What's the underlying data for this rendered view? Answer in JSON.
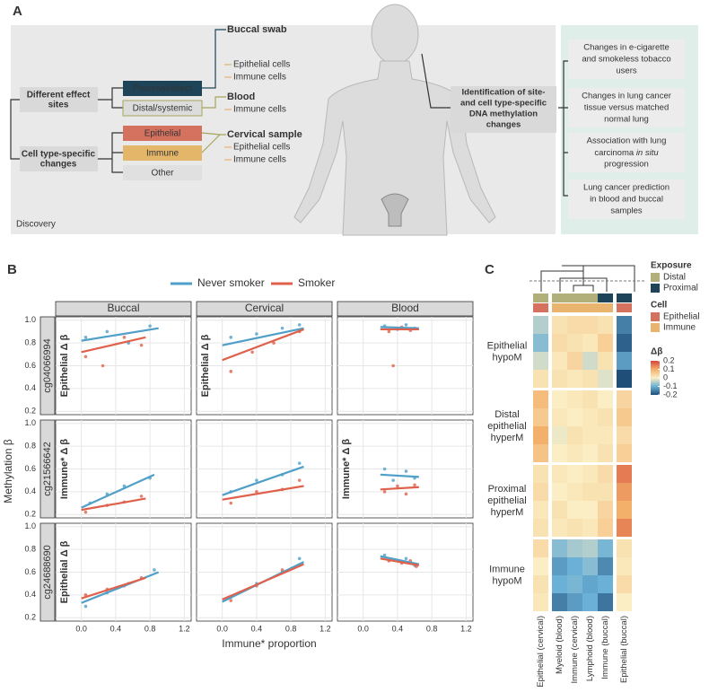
{
  "panel_a": {
    "label": "A",
    "footer": "Discovery",
    "left_boxes": [
      [
        "Different effect",
        "sites"
      ],
      [
        "Cell type-specific",
        "changes"
      ]
    ],
    "mid_boxes": [
      "Proximal/direct",
      "Distal/systemic",
      "Epithelial",
      "Immune",
      "Other"
    ],
    "samples": [
      {
        "name": "Buccal swab",
        "cells": [
          "Epithelial cells",
          "Immune cells"
        ]
      },
      {
        "name": "Blood",
        "cells": [
          "Immune cells"
        ]
      },
      {
        "name": "Cervical sample",
        "cells": [
          "Epithelial cells",
          "Immune cells"
        ]
      }
    ],
    "center_box": [
      "Identification of site-",
      "and cell type-specific",
      "DNA methylation",
      "changes"
    ],
    "right_boxes": [
      [
        "Changes in e-cigarette",
        "and smokeless tobacco",
        "users"
      ],
      [
        "Changes in lung cancer",
        "tissue versus matched",
        "normal lung"
      ],
      [
        "Association with lung",
        [
          "carcinoma ",
          "in situ"
        ],
        "progression"
      ],
      [
        "Lung cancer prediction",
        "in blood and buccal",
        "samples"
      ]
    ]
  },
  "chart_data": [
    {
      "type": "scatter",
      "panel_label": "B",
      "xlabel": "Immune* proportion",
      "ylabel": "Methylation β",
      "series": [
        {
          "name": "Never smoker",
          "color": "#4f9fc8"
        },
        {
          "name": "Smoker",
          "color": "#e0614b"
        }
      ],
      "columns": [
        "Buccal",
        "Cervical",
        "Blood"
      ],
      "rows": [
        "cg04066994",
        "cg21566642",
        "cg24688690"
      ],
      "xlim": [
        -0.3,
        1.28
      ],
      "xticks": [
        {
          "value": 0,
          "label": "0.0"
        },
        0.4,
        0.8,
        1.2
      ],
      "ylim": [
        0.17,
        1.03
      ],
      "yticks": [
        0.2,
        0.4,
        0.6,
        0.8,
        {
          "value": 1,
          "label": "1.0"
        }
      ],
      "grid": true,
      "panels": [
        {
          "fits": [
            [
              0,
              0.82,
              0.9,
              0.93
            ],
            [
              0,
              0.72,
              0.75,
              0.85
            ]
          ],
          "points": [
            [
              [
                0.05,
                0.85
              ],
              [
                0.3,
                0.9
              ],
              [
                0.55,
                0.8
              ],
              [
                0.8,
                0.95
              ]
            ],
            [
              [
                0.05,
                0.68
              ],
              [
                0.25,
                0.6
              ],
              [
                0.5,
                0.85
              ],
              [
                0.7,
                0.78
              ]
            ]
          ]
        },
        {
          "fits": [
            [
              0,
              0.78,
              0.95,
              0.93
            ],
            [
              0,
              0.65,
              0.95,
              0.92
            ]
          ],
          "points": [
            [
              [
                0.1,
                0.85
              ],
              [
                0.4,
                0.88
              ],
              [
                0.7,
                0.93
              ],
              [
                0.9,
                0.96
              ]
            ],
            [
              [
                0.1,
                0.55
              ],
              [
                0.35,
                0.72
              ],
              [
                0.6,
                0.8
              ],
              [
                0.9,
                0.9
              ]
            ]
          ]
        },
        {
          "fits": [
            [
              0.2,
              0.94,
              0.65,
              0.93
            ],
            [
              0.2,
              0.92,
              0.65,
              0.92
            ]
          ],
          "points": [
            [
              [
                0.25,
                0.95
              ],
              [
                0.4,
                0.92
              ],
              [
                0.5,
                0.96
              ],
              [
                0.6,
                0.93
              ]
            ],
            [
              [
                0.3,
                0.9
              ],
              [
                0.45,
                0.94
              ],
              [
                0.55,
                0.91
              ],
              [
                0.35,
                0.6
              ]
            ]
          ]
        },
        {
          "fits": [
            [
              0,
              0.26,
              0.85,
              0.55
            ],
            [
              0,
              0.24,
              0.75,
              0.34
            ]
          ],
          "points": [
            [
              [
                0.1,
                0.3
              ],
              [
                0.3,
                0.38
              ],
              [
                0.5,
                0.45
              ],
              [
                0.8,
                0.52
              ]
            ],
            [
              [
                0.05,
                0.22
              ],
              [
                0.3,
                0.28
              ],
              [
                0.5,
                0.31
              ],
              [
                0.7,
                0.36
              ]
            ]
          ]
        },
        {
          "fits": [
            [
              0,
              0.37,
              0.95,
              0.62
            ],
            [
              0,
              0.33,
              0.95,
              0.45
            ]
          ],
          "points": [
            [
              [
                0.1,
                0.4
              ],
              [
                0.4,
                0.5
              ],
              [
                0.7,
                0.55
              ],
              [
                0.9,
                0.65
              ]
            ],
            [
              [
                0.1,
                0.3
              ],
              [
                0.4,
                0.4
              ],
              [
                0.7,
                0.42
              ],
              [
                0.9,
                0.5
              ]
            ]
          ]
        },
        {
          "fits": [
            [
              0.2,
              0.55,
              0.65,
              0.53
            ],
            [
              0.2,
              0.42,
              0.65,
              0.44
            ]
          ],
          "points": [
            [
              [
                0.25,
                0.6
              ],
              [
                0.35,
                0.5
              ],
              [
                0.5,
                0.58
              ],
              [
                0.6,
                0.52
              ]
            ],
            [
              [
                0.25,
                0.4
              ],
              [
                0.4,
                0.45
              ],
              [
                0.5,
                0.38
              ],
              [
                0.6,
                0.46
              ]
            ]
          ]
        },
        {
          "fits": [
            [
              0,
              0.33,
              0.9,
              0.6
            ],
            [
              0,
              0.37,
              0.75,
              0.55
            ]
          ],
          "points": [
            [
              [
                0.05,
                0.3
              ],
              [
                0.3,
                0.42
              ],
              [
                0.55,
                0.5
              ],
              [
                0.85,
                0.62
              ]
            ],
            [
              [
                0.05,
                0.4
              ],
              [
                0.3,
                0.45
              ],
              [
                0.5,
                0.48
              ],
              [
                0.7,
                0.55
              ]
            ]
          ]
        },
        {
          "fits": [
            [
              0,
              0.34,
              0.95,
              0.69
            ],
            [
              0,
              0.36,
              0.95,
              0.67
            ]
          ],
          "points": [
            [
              [
                0.1,
                0.38
              ],
              [
                0.4,
                0.5
              ],
              [
                0.7,
                0.6
              ],
              [
                0.9,
                0.72
              ]
            ],
            [
              [
                0.1,
                0.35
              ],
              [
                0.4,
                0.48
              ],
              [
                0.7,
                0.62
              ],
              [
                0.9,
                0.66
              ]
            ]
          ]
        },
        {
          "fits": [
            [
              0.2,
              0.74,
              0.65,
              0.67
            ],
            [
              0.2,
              0.72,
              0.65,
              0.66
            ]
          ],
          "points": [
            [
              [
                0.25,
                0.75
              ],
              [
                0.4,
                0.7
              ],
              [
                0.5,
                0.72
              ],
              [
                0.6,
                0.66
              ]
            ],
            [
              [
                0.3,
                0.7
              ],
              [
                0.45,
                0.68
              ],
              [
                0.55,
                0.7
              ],
              [
                0.62,
                0.65
              ]
            ]
          ]
        }
      ],
      "annotations": [
        {
          "text": "Epithelial Δ β",
          "panel": 0,
          "color": "#e0614b"
        },
        {
          "text": "Epithelial Δ β",
          "panel": 1,
          "color": "#e0614b"
        },
        {
          "text": "Immune* Δ β",
          "panel": 3,
          "color": "#e4a04a"
        },
        {
          "text": "Immune* Δ β",
          "panel": 5,
          "color": "#e4a04a"
        },
        {
          "text": "Epithelial Δ β",
          "panel": 6,
          "color": "#e0614b"
        }
      ]
    },
    {
      "type": "heatmap",
      "panel_label": "C",
      "columns": [
        "Epithelial (cervical)",
        "Myeloid (blood)",
        "Immune (cervical)",
        "Lymphoid (blood)",
        "Immune (buccal)",
        "Epithelial (buccal)"
      ],
      "exposure": {
        "title": "Exposure",
        "levels": [
          {
            "name": "Distal",
            "color": "#b2b07a"
          },
          {
            "name": "Proximal",
            "color": "#1d4459"
          }
        ],
        "columns": [
          0,
          0,
          0,
          0,
          1,
          1
        ]
      },
      "cell": {
        "title": "Cell",
        "levels": [
          {
            "name": "Epithelial",
            "color": "#d4725f"
          },
          {
            "name": "Immune",
            "color": "#e8b46e"
          }
        ],
        "columns": [
          0,
          1,
          1,
          1,
          1,
          0
        ]
      },
      "colorbar": {
        "title": "Δβ",
        "lim": [
          -0.2,
          0.2
        ],
        "ticks": [
          0.2,
          0.1,
          0,
          -0.1,
          -0.2
        ],
        "colors": [
          "#1f4e79",
          "#6bb0d6",
          "#fbeec4",
          "#f3b06a",
          "#d6453a"
        ]
      },
      "groups": [
        {
          "name": [
            "Epithelial",
            "hypoM"
          ],
          "values": [
            [
              -0.05,
              0.02,
              0.03,
              0.03,
              0.02,
              -0.15
            ],
            [
              -0.08,
              0.03,
              0.02,
              0.01,
              0.05,
              -0.18
            ],
            [
              -0.03,
              0.01,
              0.04,
              -0.03,
              0.02,
              -0.12
            ],
            [
              0.02,
              0.02,
              0.01,
              0.02,
              -0.02,
              -0.2
            ]
          ]
        },
        {
          "name": [
            "Distal",
            "epithelial",
            "hyperM"
          ],
          "values": [
            [
              0.08,
              0,
              0.01,
              0.02,
              0,
              0.04
            ],
            [
              0.06,
              0.01,
              0,
              0.01,
              0.02,
              0.06
            ],
            [
              0.1,
              -0.01,
              0.02,
              0.01,
              0.01,
              0.03
            ],
            [
              0.07,
              0,
              0.01,
              0,
              0.02,
              0.05
            ]
          ]
        },
        {
          "name": [
            "Proximal",
            "epithelial",
            "hyperM"
          ],
          "values": [
            [
              0.02,
              0.01,
              0,
              0.01,
              0.03,
              0.15
            ],
            [
              0.03,
              0,
              0.01,
              0.02,
              0.02,
              0.12
            ],
            [
              0.01,
              0.02,
              0,
              0,
              0.04,
              0.1
            ],
            [
              0.02,
              0.01,
              0.02,
              0.01,
              0.05,
              0.14
            ]
          ]
        },
        {
          "name": [
            "Immune",
            "hypoM"
          ],
          "values": [
            [
              0.03,
              -0.08,
              -0.06,
              -0.05,
              -0.09,
              0.02
            ],
            [
              0,
              -0.12,
              -0.1,
              -0.08,
              -0.14,
              0.01
            ],
            [
              0.02,
              -0.1,
              -0.09,
              -0.11,
              -0.1,
              0.03
            ],
            [
              0.01,
              -0.15,
              -0.12,
              -0.1,
              -0.16,
              0
            ]
          ]
        }
      ]
    }
  ]
}
